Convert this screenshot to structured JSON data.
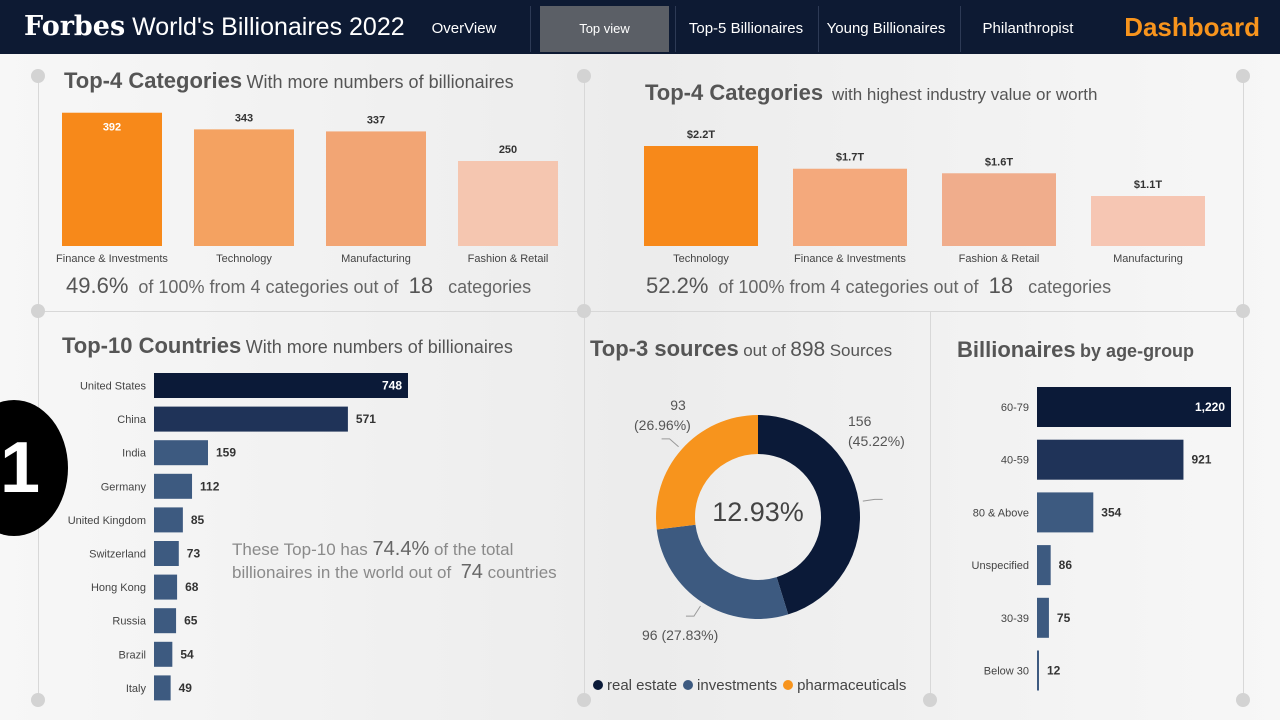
{
  "header": {
    "title_brand": "Forbes",
    "title_rest": " World's Billionaires 2022",
    "tabs": [
      "OverView",
      "Top view",
      "Top-5 Billionaires",
      "Young Billionaires",
      "Philanthropist"
    ],
    "active_tab": "Top view",
    "dashboard_label": "Dashboard"
  },
  "colors": {
    "navy": "#0d1a33",
    "orange": "#f7941d",
    "blue": "#3d5a80",
    "dark_navy": "#0b1a38"
  },
  "panels": {
    "top_categories_count": {
      "title_bold": "Top-4 Categories",
      "title_rest": "With more numbers of billionaires",
      "summary_pct": "49.6%",
      "summary_mid": "of 100% from 4 categories out of",
      "summary_num": "18",
      "summary_end": "categories"
    },
    "top_categories_worth": {
      "title_bold": "Top-4 Categories",
      "title_rest": "with highest industry value or worth",
      "summary_pct": "52.2%",
      "summary_mid": "of 100% from 4 categories out of",
      "summary_num": "18",
      "summary_end": "categories"
    },
    "top_countries": {
      "title_bold": "Top-10 Countries",
      "title_rest": "With more numbers of billionaires",
      "note_a": "These Top-10 has",
      "note_pct": "74.4%",
      "note_b": "of the total billionaires in the world out of",
      "note_num": "74",
      "note_c": "countries"
    },
    "top_sources": {
      "title_bold": "Top-3 sources",
      "title_mid": "out of",
      "title_num": "898",
      "title_end": "Sources",
      "center_label": "12.93%"
    },
    "age_groups": {
      "title_bold": "Billionaires",
      "title_rest": "by age-group"
    }
  },
  "badge": "1",
  "chart_data": [
    {
      "id": "categories_count",
      "type": "bar",
      "title": "Top-4 Categories With more numbers of billionaires",
      "categories": [
        "Finance & Investments",
        "Technology",
        "Manufacturing",
        "Fashion & Retail"
      ],
      "values": [
        392,
        343,
        337,
        250
      ],
      "labels": [
        "392",
        "343",
        "337",
        "250"
      ],
      "colors": [
        "#f7891a",
        "#f4a261",
        "#f2a574",
        "#f5c6b0"
      ],
      "ylim": [
        0,
        400
      ]
    },
    {
      "id": "categories_worth",
      "type": "bar",
      "title": "Top-4 Categories with highest industry value or worth",
      "categories": [
        "Technology",
        "Finance & Investments",
        "Fashion & Retail",
        "Manufacturing"
      ],
      "values": [
        2.2,
        1.7,
        1.6,
        1.1
      ],
      "labels": [
        "$2.2T",
        "$1.7T",
        "$1.6T",
        "$1.1T"
      ],
      "colors": [
        "#f7891a",
        "#f4a97c",
        "#f0ad8c",
        "#f6c6b3"
      ],
      "ylim": [
        0,
        2.2
      ]
    },
    {
      "id": "countries",
      "type": "bar",
      "orientation": "horizontal",
      "title": "Top-10 Countries With more numbers of billionaires",
      "categories": [
        "United States",
        "China",
        "India",
        "Germany",
        "United Kingdom",
        "Switzerland",
        "Hong Kong",
        "Russia",
        "Brazil",
        "Italy"
      ],
      "values": [
        748,
        571,
        159,
        112,
        85,
        73,
        68,
        65,
        54,
        49
      ],
      "colors": [
        "#0b1a38",
        "#1f3358",
        "#3d5a80",
        "#3d5a80",
        "#3d5a80",
        "#3d5a80",
        "#3d5a80",
        "#3d5a80",
        "#3d5a80",
        "#3d5a80"
      ]
    },
    {
      "id": "sources",
      "type": "pie",
      "title": "Top-3 sources out of 898 Sources",
      "categories": [
        "real estate",
        "investments",
        "pharmaceuticals"
      ],
      "values": [
        156,
        96,
        93
      ],
      "percents": [
        "45.22%",
        "27.83%",
        "26.96%"
      ],
      "colors": [
        "#0b1a38",
        "#3d5a80",
        "#f7941d"
      ],
      "center_value": "12.93%"
    },
    {
      "id": "age_groups",
      "type": "bar",
      "orientation": "horizontal",
      "title": "Billionaires by age-group",
      "categories": [
        "60-79",
        "40-59",
        "80 & Above",
        "Unspecified",
        "30-39",
        "Below 30"
      ],
      "values": [
        1220,
        921,
        354,
        86,
        75,
        12
      ],
      "labels": [
        "1,220",
        "921",
        "354",
        "86",
        "75",
        "12"
      ],
      "colors": [
        "#0b1a38",
        "#1f3358",
        "#3d5a80",
        "#3d5a80",
        "#3d5a80",
        "#3d5a80"
      ]
    }
  ]
}
